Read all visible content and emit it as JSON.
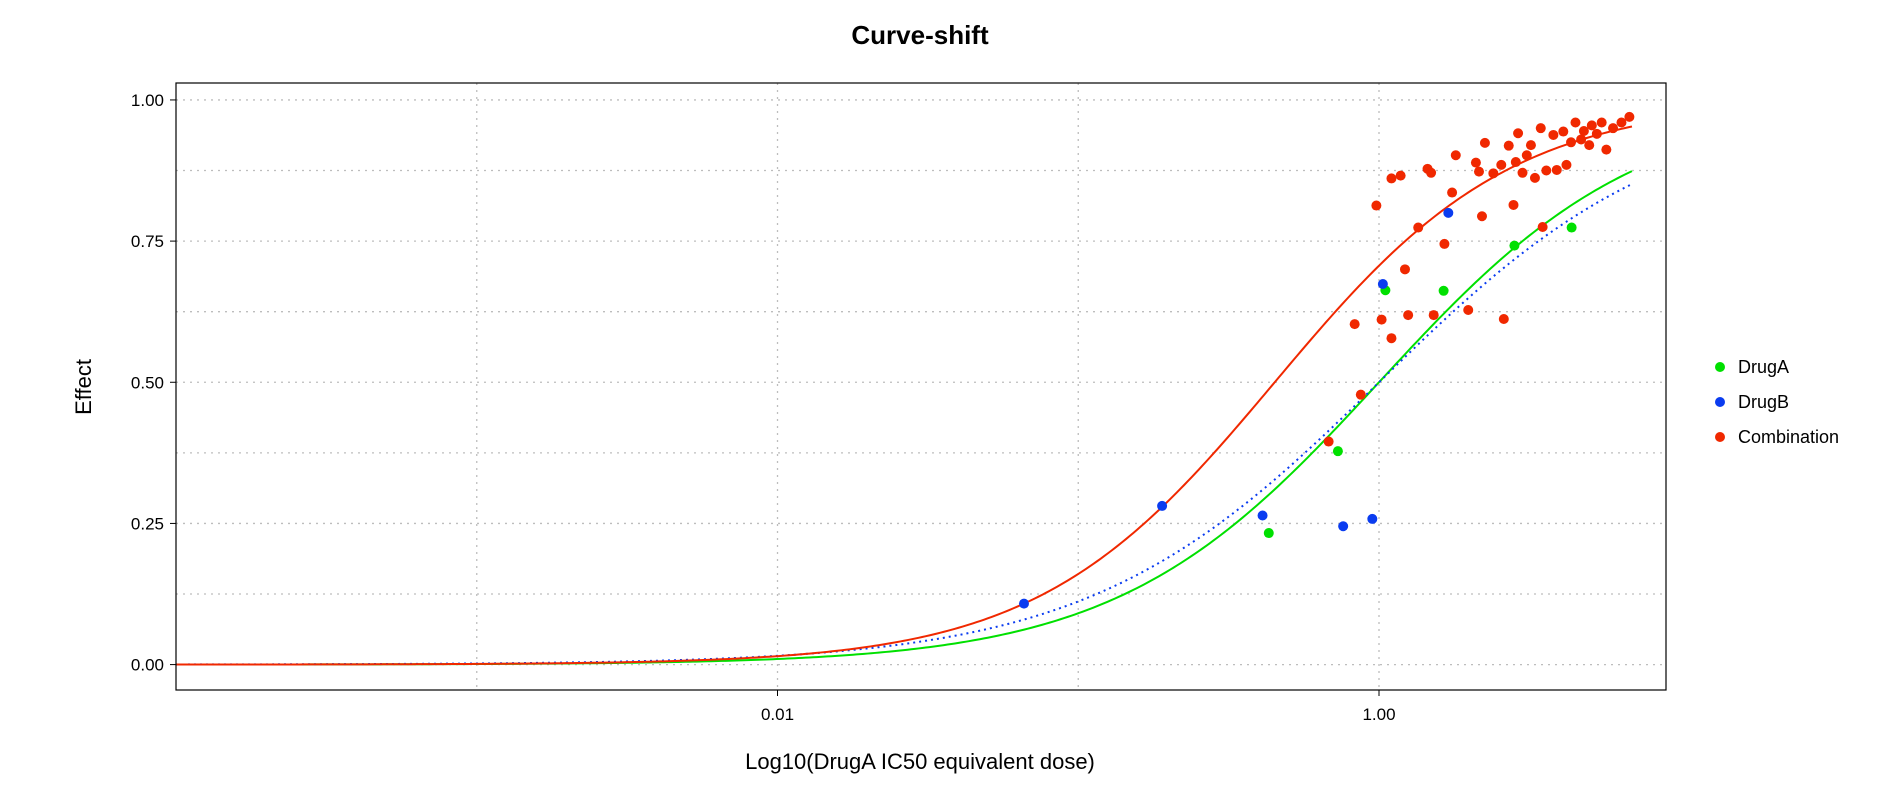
{
  "chart_data": {
    "type": "scatter",
    "title": "Curve-shift",
    "xlabel": "Log10(DrugA IC50 equivalent dose)",
    "ylabel": "Effect",
    "x_scale": "log10",
    "x_ticks": [
      0.01,
      1.0
    ],
    "x_tick_labels": [
      "0.01",
      "1.00"
    ],
    "x_minor_grid": [
      0.001,
      0.1
    ],
    "xlim": [
      0.0001,
      9.0
    ],
    "y_ticks": [
      0.0,
      0.25,
      0.5,
      0.75,
      1.0
    ],
    "y_tick_labels": [
      "0.00",
      "0.25",
      "0.50",
      "0.75",
      "1.00"
    ],
    "ylim": [
      -0.045,
      1.03
    ],
    "grid": true,
    "legend_position": "right",
    "series": [
      {
        "name": "DrugA",
        "color": "#00e000",
        "line_style": "solid",
        "fit": {
          "ic50": 1.0,
          "slope": 1.0,
          "emax": 1.0
        },
        "x": [
          0.43,
          0.73,
          1.05,
          1.64,
          2.82,
          4.37
        ],
        "y": [
          0.233,
          0.378,
          0.663,
          0.662,
          0.742,
          0.774
        ]
      },
      {
        "name": "DrugB",
        "color": "#0a3cf0",
        "line_style": "dotted",
        "fit": {
          "ic50": 1.0,
          "slope": 0.9,
          "emax": 1.0
        },
        "x": [
          0.066,
          0.19,
          0.41,
          0.76,
          0.95,
          1.03,
          1.7
        ],
        "y": [
          0.108,
          0.281,
          0.264,
          0.245,
          0.258,
          0.674,
          0.8
        ]
      },
      {
        "name": "Combination",
        "color": "#f02800",
        "line_style": "solid",
        "fit": {
          "ic50": 0.45,
          "slope": 1.1,
          "emax": 1.0
        },
        "x": [
          0.68,
          0.83,
          0.87,
          0.98,
          1.02,
          1.1,
          1.1,
          1.18,
          1.22,
          1.25,
          1.35,
          1.45,
          1.49,
          1.52,
          1.65,
          1.75,
          1.8,
          1.98,
          2.1,
          2.15,
          2.2,
          2.25,
          2.4,
          2.55,
          2.6,
          2.7,
          2.8,
          2.85,
          2.9,
          3.0,
          3.1,
          3.2,
          3.3,
          3.45,
          3.5,
          3.6,
          3.8,
          3.9,
          4.1,
          4.2,
          4.35,
          4.5,
          4.7,
          4.8,
          5.0,
          5.1,
          5.3,
          5.5,
          5.7,
          6.0,
          6.4,
          6.8
        ],
        "y": [
          0.395,
          0.603,
          0.478,
          0.813,
          0.611,
          0.578,
          0.861,
          0.866,
          0.7,
          0.619,
          0.774,
          0.878,
          0.871,
          0.619,
          0.745,
          0.836,
          0.902,
          0.628,
          0.889,
          0.873,
          0.794,
          0.924,
          0.87,
          0.885,
          0.612,
          0.919,
          0.814,
          0.89,
          0.941,
          0.871,
          0.902,
          0.92,
          0.862,
          0.95,
          0.775,
          0.875,
          0.938,
          0.876,
          0.944,
          0.885,
          0.925,
          0.96,
          0.93,
          0.945,
          0.92,
          0.955,
          0.94,
          0.96,
          0.912,
          0.95,
          0.96,
          0.97
        ]
      }
    ]
  }
}
